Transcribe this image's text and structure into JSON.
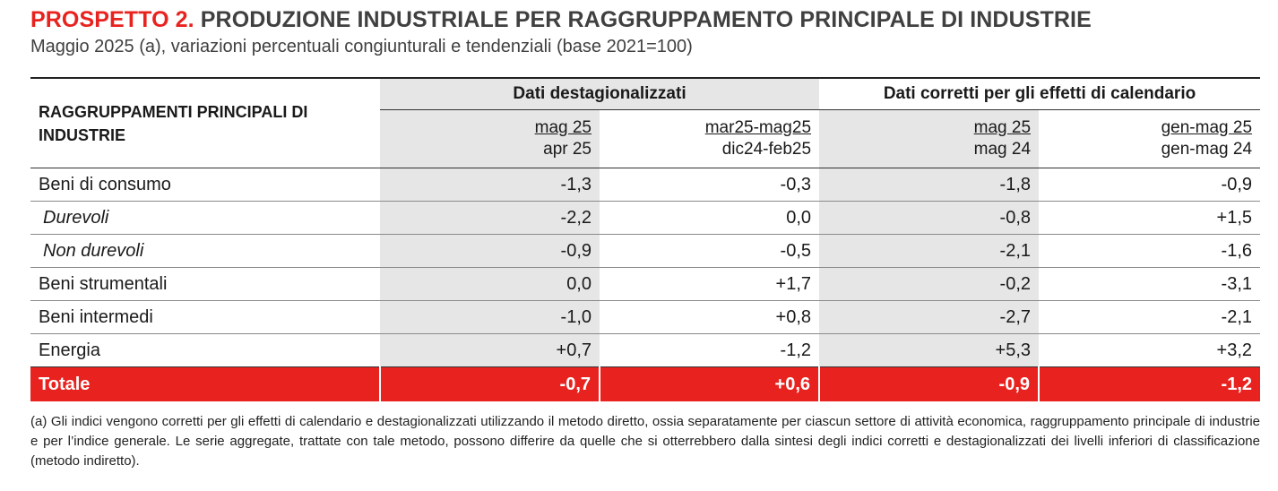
{
  "header": {
    "label": "PROSPETTO 2.",
    "title": "PRODUZIONE INDUSTRIALE PER RAGGRUPPAMENTO PRINCIPALE DI INDUSTRIE",
    "subtitle": "Maggio 2025 (a), variazioni percentuali congiunturali e tendenziali (base 2021=100)"
  },
  "table": {
    "stub_header": "RAGGRUPPAMENTI PRINCIPALI DI INDUSTRIE",
    "groups": [
      "Dati destagionalizzati",
      "Dati corretti per gli effetti di calendario"
    ],
    "columns": [
      {
        "top": "mag 25",
        "bottom": "apr 25"
      },
      {
        "top": "mar25-mag25",
        "bottom": "dic24-feb25"
      },
      {
        "top": "mag 25",
        "bottom": "mag 24"
      },
      {
        "top": "gen-mag 25",
        "bottom": "gen-mag 24"
      }
    ],
    "rows": [
      {
        "label": "Beni di consumo",
        "values": [
          "-1,3",
          "-0,3",
          "-1,8",
          "-0,9"
        ]
      },
      {
        "label": "Durevoli",
        "values": [
          "-2,2",
          "0,0",
          "-0,8",
          "+1,5"
        ]
      },
      {
        "label": "Non durevoli",
        "values": [
          "-0,9",
          "-0,5",
          "-2,1",
          "-1,6"
        ]
      },
      {
        "label": "Beni strumentali",
        "values": [
          "0,0",
          "+1,7",
          "-0,2",
          "-3,1"
        ]
      },
      {
        "label": "Beni intermedi",
        "values": [
          "-1,0",
          "+0,8",
          "-2,7",
          "-2,1"
        ]
      },
      {
        "label": "Energia",
        "values": [
          "+0,7",
          "-1,2",
          "+5,3",
          "+3,2"
        ]
      }
    ],
    "total": {
      "label": "Totale",
      "values": [
        "-0,7",
        "+0,6",
        "-0,9",
        "-1,2"
      ]
    }
  },
  "footnote": "(a) Gli indici vengono corretti per gli effetti di calendario e destagionalizzati utilizzando il metodo diretto, ossia separatamente per ciascun settore di attività economica, raggruppamento principale di industrie e per l’indice generale. Le serie aggregate, trattate con tale metodo, possono differire da quelle che si otterrebbero dalla sintesi degli indici corretti e destagionalizzati dei livelli inferiori di classificazione (metodo indiretto).",
  "colors": {
    "accent_red": "#e8231f",
    "shade_gray": "#e6e6e6",
    "title_gray": "#404040"
  }
}
